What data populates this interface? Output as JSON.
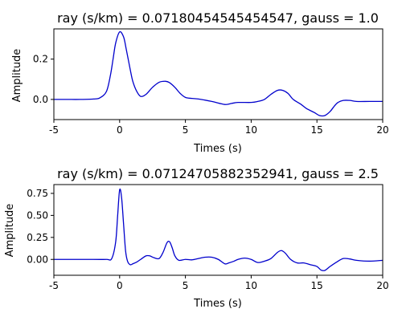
{
  "chart_data": [
    {
      "type": "line",
      "title": "ray (s/km) = 0.07180454545454547, gauss = 1.0",
      "xlabel": "Times (s)",
      "ylabel": "Amplitude",
      "xlim": [
        -5,
        20
      ],
      "ylim": [
        -0.1,
        0.35
      ],
      "xticks": [
        -5,
        0,
        5,
        10,
        15,
        20
      ],
      "yticks": [
        0.0,
        0.2
      ],
      "ytick_labels": [
        "0.0",
        "0.2"
      ],
      "grid": false,
      "line_color": "#0000cc",
      "series": [
        {
          "x": [
            -5,
            -4,
            -3,
            -2,
            -1.5,
            -1,
            -0.7,
            -0.5,
            -0.3,
            0,
            0.3,
            0.5,
            0.8,
            1,
            1.3,
            1.6,
            2,
            2.5,
            3,
            3.5,
            3.8,
            4.2,
            4.6,
            5,
            5.5,
            6,
            7,
            8,
            8.5,
            9,
            10,
            10.5,
            11,
            11.5,
            12,
            12.4,
            12.8,
            13.2,
            13.8,
            14.2,
            14.8,
            15.2,
            15.6,
            16,
            16.3,
            16.6,
            17,
            17.5,
            18,
            19,
            20
          ],
          "y": [
            0,
            0,
            0,
            0.002,
            0.008,
            0.04,
            0.12,
            0.2,
            0.28,
            0.335,
            0.31,
            0.25,
            0.15,
            0.09,
            0.04,
            0.015,
            0.025,
            0.06,
            0.085,
            0.09,
            0.083,
            0.06,
            0.03,
            0.01,
            0.005,
            0.002,
            -0.01,
            -0.025,
            -0.02,
            -0.015,
            -0.015,
            -0.01,
            0.0,
            0.025,
            0.045,
            0.045,
            0.03,
            0.0,
            -0.025,
            -0.045,
            -0.065,
            -0.08,
            -0.08,
            -0.06,
            -0.035,
            -0.015,
            -0.005,
            -0.005,
            -0.01,
            -0.01,
            -0.01
          ]
        }
      ]
    },
    {
      "type": "line",
      "title": "ray (s/km) = 0.07124705882352941, gauss = 2.5",
      "xlabel": "Times (s)",
      "ylabel": "Amplitude",
      "xlim": [
        -5,
        20
      ],
      "ylim": [
        -0.18,
        0.85
      ],
      "xticks": [
        -5,
        0,
        5,
        10,
        15,
        20
      ],
      "yticks": [
        0.0,
        0.25,
        0.5,
        0.75
      ],
      "ytick_labels": [
        "0.00",
        "0.25",
        "0.50",
        "0.75"
      ],
      "grid": false,
      "line_color": "#0000cc",
      "series": [
        {
          "x": [
            -5,
            -2,
            -1,
            -0.6,
            -0.3,
            -0.15,
            0,
            0.15,
            0.3,
            0.45,
            0.6,
            0.8,
            1,
            1.3,
            1.6,
            2,
            2.3,
            2.6,
            3,
            3.3,
            3.6,
            3.8,
            4,
            4.2,
            4.5,
            5,
            5.5,
            6,
            6.5,
            7,
            7.5,
            8,
            8.3,
            8.7,
            9,
            9.5,
            10,
            10.5,
            11,
            11.5,
            12,
            12.3,
            12.6,
            13,
            13.5,
            14,
            14.5,
            15,
            15.3,
            15.6,
            16,
            16.5,
            17,
            17.5,
            18,
            19,
            20
          ],
          "y": [
            0,
            0,
            0,
            0.01,
            0.2,
            0.5,
            0.79,
            0.7,
            0.4,
            0.1,
            -0.02,
            -0.06,
            -0.05,
            -0.03,
            0.0,
            0.04,
            0.04,
            0.02,
            0.01,
            0.08,
            0.19,
            0.2,
            0.13,
            0.04,
            -0.01,
            0.0,
            -0.005,
            0.01,
            0.025,
            0.025,
            0.0,
            -0.05,
            -0.04,
            -0.02,
            0.0,
            0.015,
            0.0,
            -0.035,
            -0.02,
            0.01,
            0.08,
            0.1,
            0.07,
            0.0,
            -0.04,
            -0.04,
            -0.06,
            -0.08,
            -0.12,
            -0.125,
            -0.08,
            -0.03,
            0.01,
            0.005,
            -0.01,
            -0.02,
            -0.01
          ]
        }
      ]
    }
  ]
}
